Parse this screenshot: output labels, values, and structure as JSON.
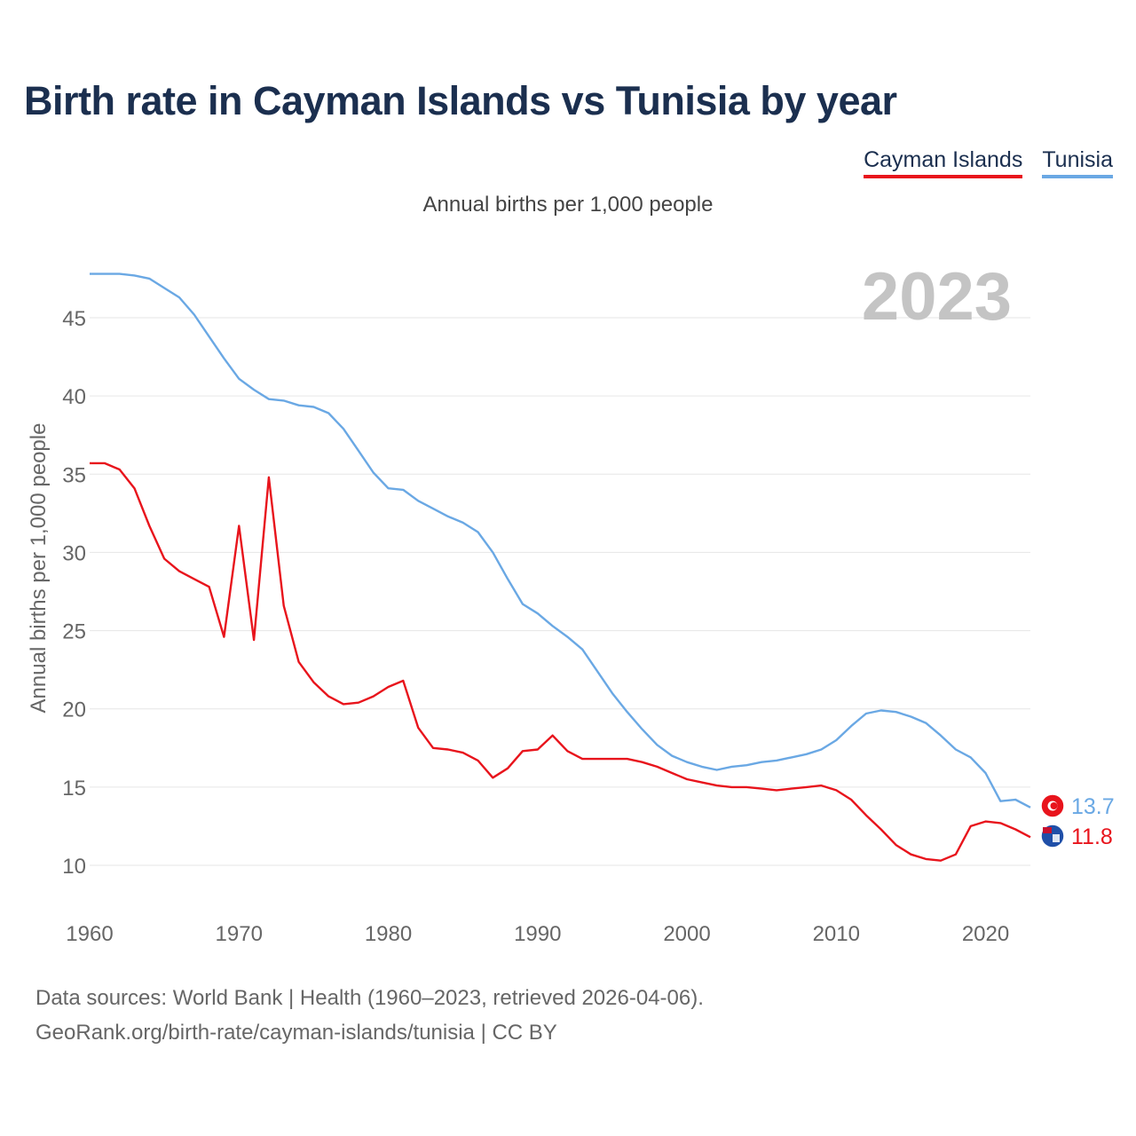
{
  "title": "Birth rate in Cayman Islands vs Tunisia by year",
  "subtitle": "Annual births per 1,000 people",
  "year_label": "2023",
  "source_line1": "Data sources: World Bank | Health (1960–2023, retrieved 2026-04-06).",
  "source_line2": "GeoRank.org/birth-rate/cayman-islands/tunisia | CC BY",
  "colors": {
    "cayman": "#e8141c",
    "tunisia": "#6aa8e4",
    "grid": "#e6e6e6",
    "axis_text": "#666666"
  },
  "chart_data": {
    "type": "line",
    "title": "Birth rate in Cayman Islands vs Tunisia by year",
    "ylabel": "Annual births per 1,000 people",
    "xlabel": "",
    "xlim": [
      1960,
      2023
    ],
    "ylim": [
      7.5,
      48
    ],
    "xticks": [
      1960,
      1970,
      1980,
      1990,
      2000,
      2010,
      2020
    ],
    "yticks": [
      10,
      15,
      20,
      25,
      30,
      35,
      40,
      45
    ],
    "grid": true,
    "legend": "top-right",
    "series": [
      {
        "name": "Cayman Islands",
        "color": "#e8141c",
        "final_label": "11.8",
        "x": [
          1960,
          1961,
          1962,
          1963,
          1964,
          1965,
          1966,
          1967,
          1968,
          1969,
          1970,
          1971,
          1972,
          1973,
          1974,
          1975,
          1976,
          1977,
          1978,
          1979,
          1980,
          1981,
          1982,
          1983,
          1984,
          1985,
          1986,
          1987,
          1988,
          1989,
          1990,
          1991,
          1992,
          1993,
          1994,
          1995,
          1996,
          1997,
          1998,
          1999,
          2000,
          2001,
          2002,
          2003,
          2004,
          2005,
          2006,
          2007,
          2008,
          2009,
          2010,
          2011,
          2012,
          2013,
          2014,
          2015,
          2016,
          2017,
          2018,
          2019,
          2020,
          2021,
          2022,
          2023
        ],
        "values": [
          35.7,
          35.7,
          35.3,
          34.1,
          31.7,
          29.6,
          28.8,
          28.3,
          27.8,
          24.6,
          31.7,
          24.4,
          34.8,
          26.6,
          23.0,
          21.7,
          20.8,
          20.3,
          20.4,
          20.8,
          21.4,
          21.8,
          18.8,
          17.5,
          17.4,
          17.2,
          16.7,
          15.6,
          16.2,
          17.3,
          17.4,
          18.3,
          17.3,
          16.8,
          16.8,
          16.8,
          16.8,
          16.6,
          16.3,
          15.9,
          15.5,
          15.3,
          15.1,
          15.0,
          15.0,
          14.9,
          14.8,
          14.9,
          15.0,
          15.1,
          14.8,
          14.2,
          13.2,
          12.3,
          11.3,
          10.7,
          10.4,
          10.3,
          10.7,
          12.5,
          12.8,
          12.7,
          12.3,
          11.8
        ]
      },
      {
        "name": "Tunisia",
        "color": "#6aa8e4",
        "final_label": "13.7",
        "x": [
          1960,
          1961,
          1962,
          1963,
          1964,
          1965,
          1966,
          1967,
          1968,
          1969,
          1970,
          1971,
          1972,
          1973,
          1974,
          1975,
          1976,
          1977,
          1978,
          1979,
          1980,
          1981,
          1982,
          1983,
          1984,
          1985,
          1986,
          1987,
          1988,
          1989,
          1990,
          1991,
          1992,
          1993,
          1994,
          1995,
          1996,
          1997,
          1998,
          1999,
          2000,
          2001,
          2002,
          2003,
          2004,
          2005,
          2006,
          2007,
          2008,
          2009,
          2010,
          2011,
          2012,
          2013,
          2014,
          2015,
          2016,
          2017,
          2018,
          2019,
          2020,
          2021,
          2022,
          2023
        ],
        "values": [
          47.8,
          47.8,
          47.8,
          47.7,
          47.5,
          46.9,
          46.3,
          45.2,
          43.8,
          42.4,
          41.1,
          40.4,
          39.8,
          39.7,
          39.4,
          39.3,
          38.9,
          37.9,
          36.5,
          35.1,
          34.1,
          34.0,
          33.3,
          32.8,
          32.3,
          31.9,
          31.3,
          30.0,
          28.3,
          26.7,
          26.1,
          25.3,
          24.6,
          23.8,
          22.4,
          21.0,
          19.8,
          18.7,
          17.7,
          17.0,
          16.6,
          16.3,
          16.1,
          16.3,
          16.4,
          16.6,
          16.7,
          16.9,
          17.1,
          17.4,
          18.0,
          18.9,
          19.7,
          19.9,
          19.8,
          19.5,
          19.1,
          18.3,
          17.4,
          16.9,
          15.9,
          14.1,
          14.2,
          13.7
        ]
      }
    ]
  }
}
